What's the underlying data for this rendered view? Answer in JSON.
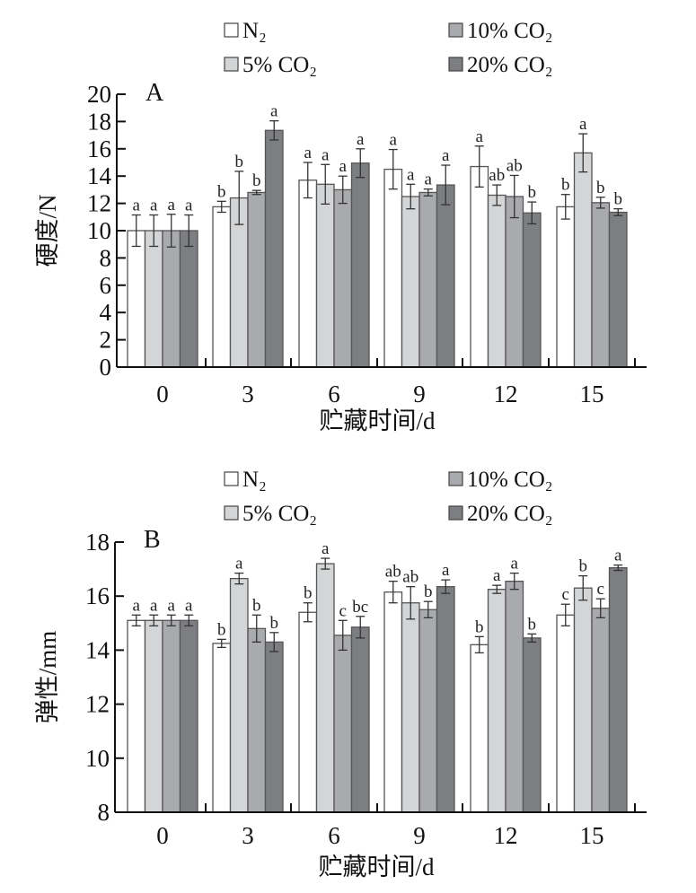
{
  "legend": [
    {
      "label": "N₂",
      "color": "#ffffff"
    },
    {
      "label": "5% CO₂",
      "color": "#d4d5d7"
    },
    {
      "label": "10% CO₂",
      "color": "#a9aaad"
    },
    {
      "label": "20% CO₂",
      "color": "#7d7e81"
    }
  ],
  "chart_data": [
    {
      "type": "bar",
      "panel": "A",
      "title": "",
      "xlabel": "贮藏时间/d",
      "ylabel": "硬度/N",
      "ylim": [
        0,
        20
      ],
      "yticks": [
        "0",
        "2",
        "4",
        "6",
        "8",
        "10",
        "12",
        "14",
        "16",
        "18",
        "20"
      ],
      "categories": [
        "0",
        "3",
        "6",
        "9",
        "12",
        "15"
      ],
      "series": [
        {
          "name": "N₂",
          "values": [
            10.0,
            11.75,
            13.7,
            14.5,
            14.7,
            11.75
          ],
          "errors": [
            1.15,
            0.4,
            1.3,
            1.45,
            1.5,
            0.9
          ],
          "labels": [
            "a",
            "b",
            "a",
            "a",
            "a",
            "b"
          ]
        },
        {
          "name": "5% CO₂",
          "values": [
            10.0,
            12.4,
            13.4,
            12.5,
            12.6,
            15.7
          ],
          "errors": [
            1.15,
            1.95,
            1.45,
            0.9,
            0.75,
            1.4
          ],
          "labels": [
            "a",
            "b",
            "a",
            "a",
            "ab",
            "a"
          ]
        },
        {
          "name": "10% CO₂",
          "values": [
            10.0,
            12.8,
            13.0,
            12.8,
            12.5,
            12.05
          ],
          "errors": [
            1.2,
            0.15,
            1.0,
            0.25,
            1.55,
            0.4
          ],
          "labels": [
            "a",
            "b",
            "a",
            "a",
            "ab",
            "b"
          ]
        },
        {
          "name": "20% CO₂",
          "values": [
            10.0,
            17.35,
            14.95,
            13.35,
            11.3,
            11.35
          ],
          "errors": [
            1.15,
            0.7,
            1.05,
            1.45,
            0.8,
            0.25
          ],
          "labels": [
            "a",
            "a",
            "a",
            "a",
            "b",
            "b"
          ]
        }
      ]
    },
    {
      "type": "bar",
      "panel": "B",
      "title": "",
      "xlabel": "贮藏时间/d",
      "ylabel": "弹性/mm",
      "ylim": [
        8,
        18
      ],
      "yticks": [
        "8",
        "10",
        "12",
        "14",
        "16",
        "18"
      ],
      "categories": [
        "0",
        "3",
        "6",
        "9",
        "12",
        "15"
      ],
      "series": [
        {
          "name": "N₂",
          "values": [
            15.1,
            14.25,
            15.4,
            16.15,
            14.2,
            15.3
          ],
          "errors": [
            0.2,
            0.15,
            0.35,
            0.4,
            0.3,
            0.4
          ],
          "labels": [
            "a",
            "b",
            "b",
            "ab",
            "b",
            "c"
          ]
        },
        {
          "name": "5% CO₂",
          "values": [
            15.1,
            16.65,
            17.2,
            15.75,
            16.25,
            16.3
          ],
          "errors": [
            0.2,
            0.2,
            0.2,
            0.6,
            0.15,
            0.45
          ],
          "labels": [
            "a",
            "a",
            "a",
            "ab",
            "a",
            "b"
          ]
        },
        {
          "name": "10% CO₂",
          "values": [
            15.1,
            14.8,
            14.55,
            15.5,
            16.55,
            15.55
          ],
          "errors": [
            0.2,
            0.5,
            0.55,
            0.3,
            0.3,
            0.35
          ],
          "labels": [
            "a",
            "b",
            "c",
            "b",
            "a",
            "c"
          ]
        },
        {
          "name": "20% CO₂",
          "values": [
            15.1,
            14.3,
            14.85,
            16.35,
            14.45,
            17.05
          ],
          "errors": [
            0.2,
            0.35,
            0.4,
            0.25,
            0.15,
            0.1
          ],
          "labels": [
            "a",
            "b",
            "bc",
            "a",
            "b",
            "a"
          ]
        }
      ]
    }
  ]
}
